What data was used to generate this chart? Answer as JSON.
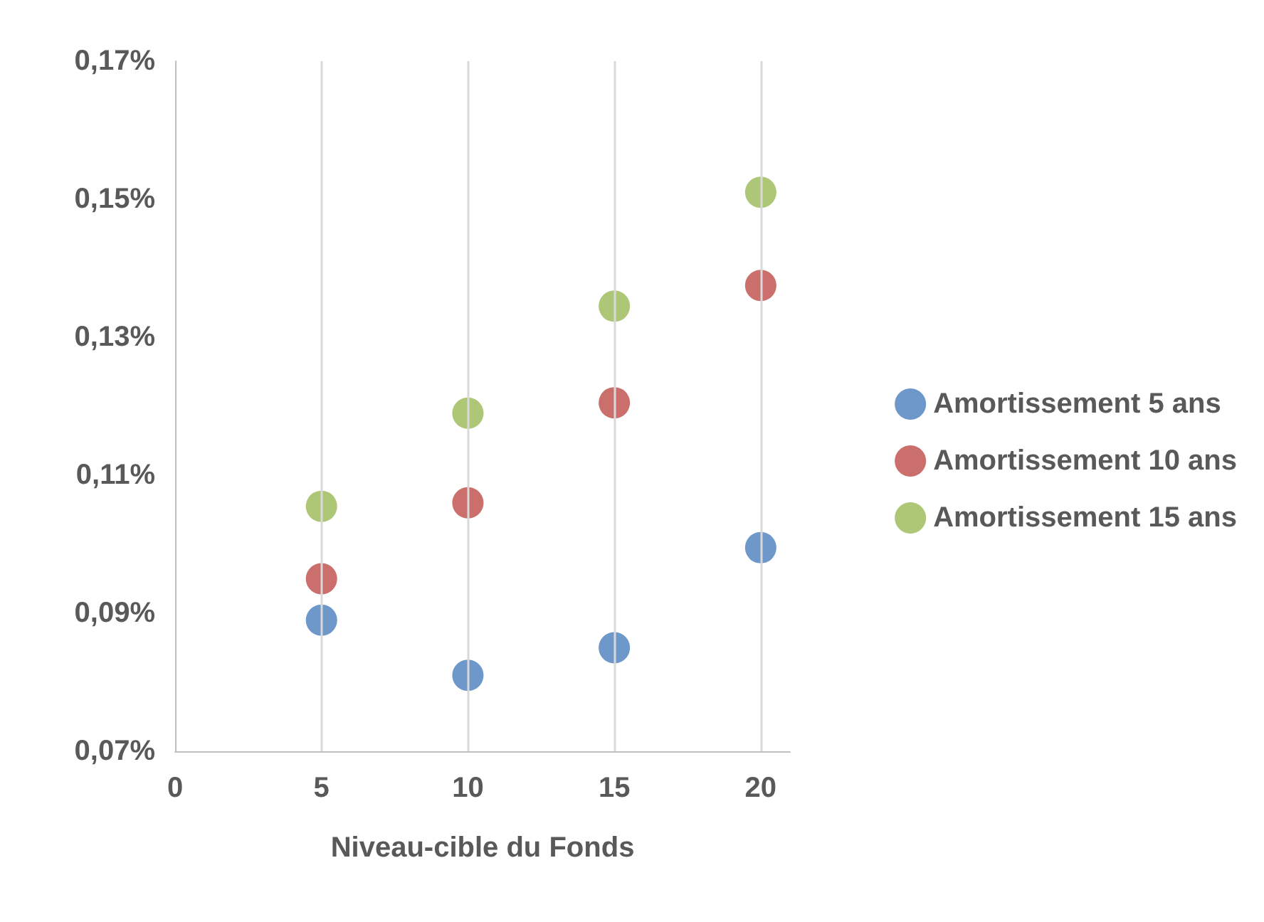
{
  "chart_data": {
    "type": "scatter",
    "xlabel": "Niveau-cible du Fonds",
    "x": [
      5,
      10,
      15,
      20
    ],
    "series": [
      {
        "name": "Amortissement 5 ans",
        "color": "#4a7ebb",
        "values": [
          0.089,
          0.081,
          0.085,
          0.0995
        ]
      },
      {
        "name": "Amortissement 10 ans",
        "color": "#be4b48",
        "values": [
          0.095,
          0.106,
          0.1205,
          0.1375
        ]
      },
      {
        "name": "Amortissement 15 ans",
        "color": "#98b954",
        "values": [
          0.1055,
          0.119,
          0.1345,
          0.151
        ]
      }
    ],
    "xlim": [
      0,
      21
    ],
    "xticks": [
      0,
      5,
      10,
      15,
      20
    ],
    "ylim": [
      0.07,
      0.17
    ],
    "yticks": [
      {
        "value": 0.07,
        "label": "0,07%"
      },
      {
        "value": 0.09,
        "label": "0,09%"
      },
      {
        "value": 0.11,
        "label": "0,11%"
      },
      {
        "value": 0.13,
        "label": "0,13%"
      },
      {
        "value": 0.15,
        "label": "0,15%"
      },
      {
        "value": 0.17,
        "label": "0,17%"
      }
    ],
    "grid": "x",
    "legend": "right",
    "marker": "circle"
  }
}
